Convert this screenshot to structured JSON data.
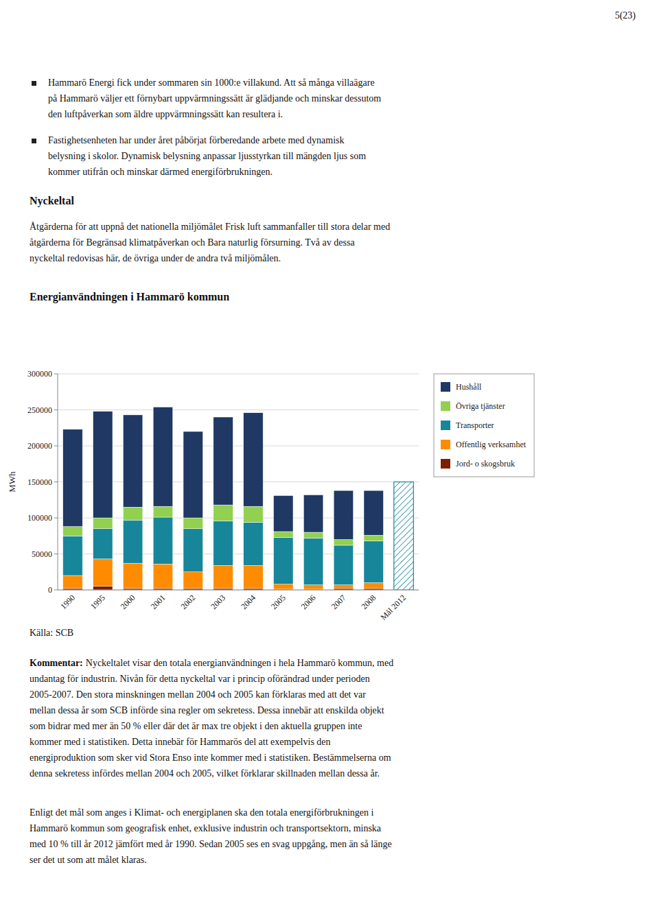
{
  "page_number": "5(23)",
  "bullets": [
    [
      "Hammarö Energi fick under sommaren sin 1000:e villakund. Att så många villaägare",
      "på Hammarö väljer ett förnybart uppvärmningssätt är glädjande och minskar dessutom",
      "den luftpåverkan som äldre uppvärmningssätt kan resultera i."
    ],
    [
      "Fastighetsenheten har under året påbörjat förberedande arbete med dynamisk",
      "belysning i skolor. Dynamisk belysning anpassar ljusstyrkan till mängden ljus som",
      "kommer utifrån och minskar därmed energiförbrukningen."
    ]
  ],
  "heading": "Nyckeltal",
  "intro": [
    "Åtgärderna för att uppnå det nationella miljömålet Frisk luft sammanfaller till stora delar med",
    "åtgärderna för Begränsad klimatpåverkan och Bara naturlig försurning. Två av dessa",
    "nyckeltal redovisas här, de övriga under de andra två miljömålen."
  ],
  "chart_data": {
    "type": "bar",
    "stacked": true,
    "title": "Energianvändningen i Hammarö kommun",
    "y_label": "MWh",
    "categories": [
      "1990",
      "1995",
      "2000",
      "2001",
      "2002",
      "2003",
      "2004",
      "2005",
      "2006",
      "2007",
      "2008",
      "Mål 2012"
    ],
    "series": [
      {
        "name": "Jord- o skogsbruk",
        "color": "#7B2000",
        "values": [
          2000,
          5000,
          2000,
          2000,
          2000,
          2000,
          2000,
          1000,
          1000,
          2000,
          2000,
          0
        ]
      },
      {
        "name": "Offentlig verksamhet",
        "color": "#FF8C00",
        "values": [
          18000,
          38000,
          35000,
          34000,
          23000,
          32000,
          32000,
          7000,
          6000,
          5000,
          8000,
          0
        ]
      },
      {
        "name": "Transporter",
        "color": "#17869B",
        "values": [
          55000,
          42000,
          60000,
          65000,
          60000,
          62000,
          60000,
          65000,
          65000,
          55000,
          58000,
          150000
        ]
      },
      {
        "name": "Övriga tjänster",
        "color": "#92D050",
        "values": [
          13000,
          15000,
          18000,
          15000,
          15000,
          22000,
          22000,
          8000,
          8000,
          8000,
          8000,
          0
        ]
      },
      {
        "name": "Hushåll",
        "color": "#1F3864",
        "values": [
          135000,
          148000,
          128000,
          138000,
          120000,
          122000,
          130000,
          50000,
          52000,
          68000,
          62000,
          0
        ]
      }
    ],
    "ylim": [
      0,
      300000
    ],
    "yticks": [
      0,
      50000,
      100000,
      150000,
      200000,
      250000,
      300000
    ],
    "grid": true,
    "legend": "right"
  },
  "source": "Källa: SCB",
  "comment_label": "Kommentar:",
  "comment": [
    "Nyckeltalet visar den totala energianvändningen i hela Hammarö kommun, med",
    "undantag för industrin. Nivån för detta nyckeltal var i princip oförändrad under perioden",
    "2005-2007. Den stora minskningen mellan 2004 och 2005 kan förklaras med att det var",
    "mellan dessa år som SCB införde sina regler om sekretess. Dessa innebär att enskilda objekt",
    "som bidrar med mer än 50 % eller där det är max tre objekt i den aktuella gruppen inte",
    "kommer med i statistiken. Detta innebär för Hammarös del att exempelvis den",
    "energiproduktion som sker vid Stora Enso inte kommer med i statistiken. Bestämmelserna om",
    "denna sekretess infördes mellan 2004 och 2005, vilket förklarar skillnaden mellan dessa år."
  ],
  "footer": [
    "Enligt det mål som anges i Klimat- och energiplanen ska den totala energiförbrukningen i",
    "Hammarö kommun som geografisk enhet, exklusive industrin och transportsektorn, minska",
    "med 10 % till år 2012 jämfört med år 1990. Sedan 2005 ses en svag uppgång, men än så länge",
    "ser det ut som att målet klaras."
  ]
}
